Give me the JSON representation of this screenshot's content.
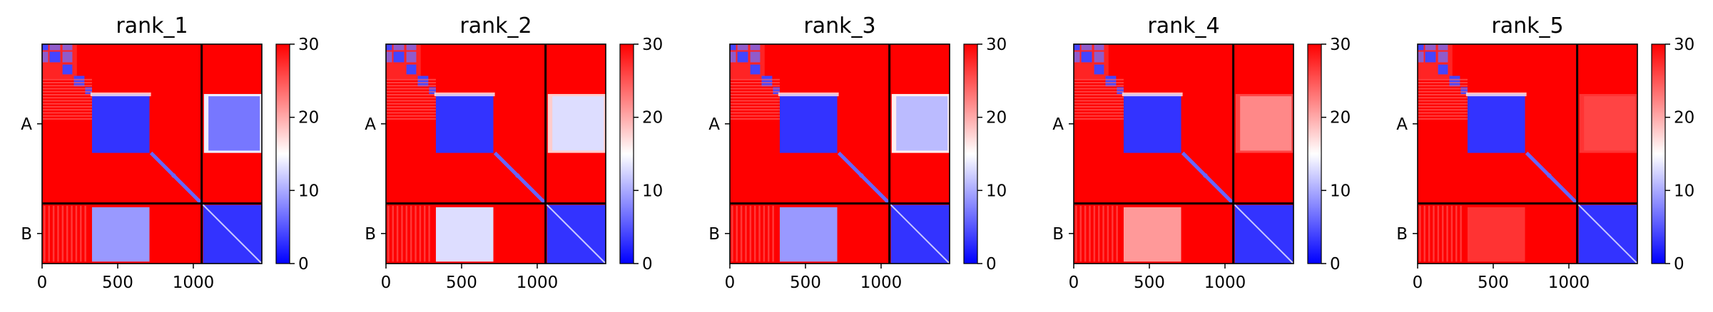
{
  "colors": {
    "low": "#0000ff",
    "mid": "#ffffff",
    "high": "#ff0000",
    "frame": "#000000"
  },
  "chart_data": {
    "type": "heatmap",
    "cmap": "bwr",
    "grid": false,
    "xlim": [
      0,
      1453
    ],
    "xticks": [
      0,
      500,
      1000
    ],
    "chain_boundary": 1055,
    "chains": [
      {
        "label": "A",
        "range": [
          0,
          1055
        ]
      },
      {
        "label": "B",
        "range": [
          1055,
          1453
        ]
      }
    ],
    "colorbar": {
      "ticks": [
        0,
        10,
        20,
        30
      ],
      "range": [
        0,
        30
      ]
    },
    "panels": [
      {
        "title": "rank_1",
        "AB_domain_value": 7,
        "BA_domain_value": 9,
        "AB_fringe_value": 14
      },
      {
        "title": "rank_2",
        "AB_domain_value": 13,
        "BA_domain_value": 13,
        "AB_fringe_value": 18
      },
      {
        "title": "rank_3",
        "AB_domain_value": 11,
        "BA_domain_value": 9,
        "AB_fringe_value": 16
      },
      {
        "title": "rank_4",
        "AB_domain_value": 22,
        "BA_domain_value": 21,
        "AB_fringe_value": 26
      },
      {
        "title": "rank_5",
        "AB_domain_value": 26,
        "BA_domain_value": 27,
        "AB_fringe_value": 27
      }
    ]
  }
}
